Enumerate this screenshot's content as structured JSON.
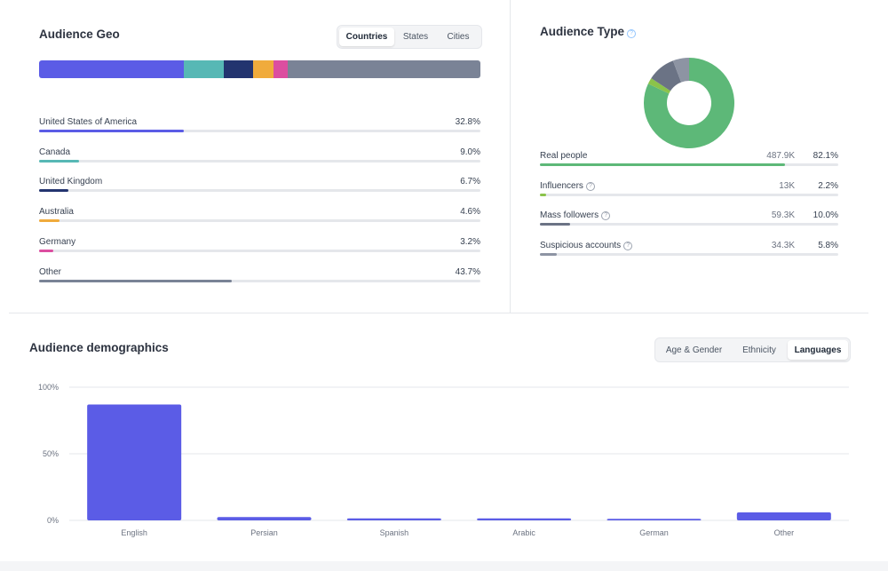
{
  "geo": {
    "title": "Audience Geo",
    "tabs": [
      {
        "label": "Countries",
        "active": true
      },
      {
        "label": "States",
        "active": false
      },
      {
        "label": "Cities",
        "active": false
      }
    ],
    "countries": [
      {
        "name": "United States of America",
        "value_label": "32.8%",
        "value": 32.8,
        "color": "#5b5ce6"
      },
      {
        "name": "Canada",
        "value_label": "9.0%",
        "value": 9.0,
        "color": "#57b8b5"
      },
      {
        "name": "United Kingdom",
        "value_label": "6.7%",
        "value": 6.7,
        "color": "#23346f"
      },
      {
        "name": "Australia",
        "value_label": "4.6%",
        "value": 4.6,
        "color": "#f0ab3c"
      },
      {
        "name": "Germany",
        "value_label": "3.2%",
        "value": 3.2,
        "color": "#dc4ea0"
      },
      {
        "name": "Other",
        "value_label": "43.7%",
        "value": 43.7,
        "color": "#7a8396"
      }
    ]
  },
  "audience_type": {
    "title": "Audience Type",
    "items": [
      {
        "name": "Real people",
        "count": "487.9K",
        "percent_label": "82.1%",
        "value": 82.1,
        "color": "#5db878",
        "help": false
      },
      {
        "name": "Influencers",
        "count": "13K",
        "percent_label": "2.2%",
        "value": 2.2,
        "color": "#8bc34a",
        "help": true
      },
      {
        "name": "Mass followers",
        "count": "59.3K",
        "percent_label": "10.0%",
        "value": 10.0,
        "color": "#6b7385",
        "help": true
      },
      {
        "name": "Suspicious accounts",
        "count": "34.3K",
        "percent_label": "5.8%",
        "value": 5.8,
        "color": "#8d94a3",
        "help": true
      }
    ]
  },
  "demographics": {
    "title": "Audience demographics",
    "tabs": [
      {
        "label": "Age & Gender",
        "active": false
      },
      {
        "label": "Ethnicity",
        "active": false
      },
      {
        "label": "Languages",
        "active": true
      }
    ]
  },
  "chart_data": {
    "type": "bar",
    "categories": [
      "English",
      "Persian",
      "Spanish",
      "Arabic",
      "German",
      "Other"
    ],
    "values": [
      87,
      2.5,
      1.5,
      1.5,
      1.2,
      6
    ],
    "ylim": [
      0,
      100
    ],
    "yticks": [
      0,
      50,
      100
    ],
    "ytick_labels": [
      "0%",
      "50%",
      "100%"
    ],
    "grid": true,
    "color": "#5b5ce6"
  }
}
